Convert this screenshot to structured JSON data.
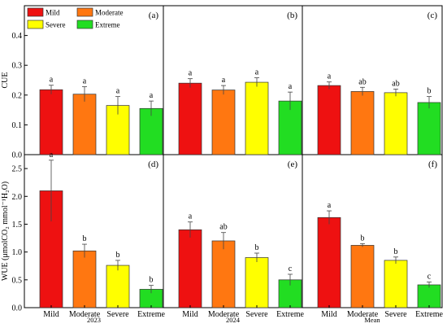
{
  "chart_data": {
    "type": "bar",
    "categories": [
      "Mild",
      "Moderate",
      "Severe",
      "Extreme"
    ],
    "colors": {
      "Mild": "#ee1111",
      "Moderate": "#ff7711",
      "Severe": "#ffff00",
      "Extreme": "#22dd22"
    },
    "legend": {
      "placement": "top-left",
      "entries": [
        {
          "label": "Mild",
          "color": "#ee1111"
        },
        {
          "label": "Moderate",
          "color": "#ff7711"
        },
        {
          "label": "Severe",
          "color": "#ffff00"
        },
        {
          "label": "Extreme",
          "color": "#22dd22"
        }
      ]
    },
    "column_labels": [
      "2023",
      "2024",
      "Mean"
    ],
    "rows": [
      {
        "ylabel": "CUE",
        "ylim": [
          0,
          0.5
        ],
        "yticks": [
          "0.0",
          "0.1",
          "0.2",
          "0.3",
          "0.4"
        ],
        "ytick_values": [
          0,
          0.1,
          0.2,
          0.3,
          0.4
        ],
        "panels": [
          {
            "tag": "(a)",
            "values": [
              0.218,
              0.203,
              0.165,
              0.155
            ],
            "errors": [
              0.015,
              0.025,
              0.03,
              0.025
            ],
            "letters": [
              "a",
              "a",
              "a",
              "a"
            ]
          },
          {
            "tag": "(b)",
            "values": [
              0.24,
              0.217,
              0.243,
              0.18
            ],
            "errors": [
              0.015,
              0.015,
              0.015,
              0.03
            ],
            "letters": [
              "a",
              "a",
              "a",
              "a"
            ]
          },
          {
            "tag": "(c)",
            "values": [
              0.232,
              0.212,
              0.208,
              0.175
            ],
            "errors": [
              0.012,
              0.014,
              0.012,
              0.02
            ],
            "letters": [
              "a",
              "ab",
              "ab",
              "b"
            ]
          }
        ]
      },
      {
        "ylabel": "WUE (μmolCO₂ mmol⁻¹H₂O)",
        "ylim": [
          0,
          2.75
        ],
        "yticks": [
          "0.0",
          "0.5",
          "1.0",
          "1.5",
          "2.0",
          "2.5"
        ],
        "ytick_values": [
          0,
          0.5,
          1.0,
          1.5,
          2.0,
          2.5
        ],
        "panels": [
          {
            "tag": "(d)",
            "values": [
              2.1,
              1.02,
              0.76,
              0.33
            ],
            "errors": [
              0.55,
              0.12,
              0.09,
              0.07
            ],
            "letters": [
              "a",
              "b",
              "b",
              "b"
            ]
          },
          {
            "tag": "(e)",
            "values": [
              1.4,
              1.2,
              0.9,
              0.5
            ],
            "errors": [
              0.14,
              0.15,
              0.08,
              0.1
            ],
            "letters": [
              "a",
              "ab",
              "b",
              "c"
            ]
          },
          {
            "tag": "(f)",
            "values": [
              1.62,
              1.12,
              0.85,
              0.41
            ],
            "errors": [
              0.12,
              0.03,
              0.06,
              0.05
            ],
            "letters": [
              "a",
              "b",
              "b",
              "c"
            ]
          }
        ]
      }
    ]
  }
}
